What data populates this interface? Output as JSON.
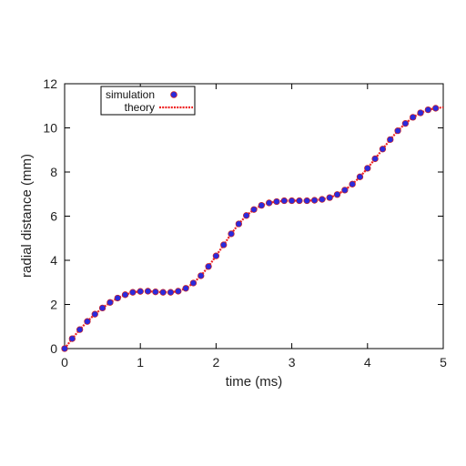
{
  "chart_data": {
    "type": "scatter",
    "xlabel": "time (ms)",
    "ylabel": "radial distance (mm)",
    "xlim": [
      0,
      5
    ],
    "ylim": [
      0,
      12
    ],
    "xticks": [
      "0",
      "1",
      "2",
      "3",
      "4",
      "5"
    ],
    "yticks": [
      "0",
      "2",
      "4",
      "6",
      "8",
      "10",
      "12"
    ],
    "grid": false,
    "legend_position": "top-left",
    "series": [
      {
        "name": "simulation",
        "style": "markers",
        "color": "#2b2bdc",
        "x": [
          0.0,
          0.1,
          0.2,
          0.3,
          0.4,
          0.5,
          0.6,
          0.7,
          0.8,
          0.9,
          1.0,
          1.1,
          1.2,
          1.3,
          1.4,
          1.5,
          1.6,
          1.7,
          1.8,
          1.9,
          2.0,
          2.1,
          2.2,
          2.3,
          2.4,
          2.5,
          2.6,
          2.7,
          2.8,
          2.9,
          3.0,
          3.1,
          3.2,
          3.3,
          3.4,
          3.5,
          3.6,
          3.7,
          3.8,
          3.9,
          4.0,
          4.1,
          4.2,
          4.3,
          4.4,
          4.5,
          4.6,
          4.7,
          4.8,
          4.9
        ],
        "y": [
          0.0,
          0.45,
          0.86,
          1.23,
          1.56,
          1.84,
          2.09,
          2.29,
          2.44,
          2.55,
          2.59,
          2.6,
          2.57,
          2.55,
          2.55,
          2.6,
          2.73,
          2.97,
          3.3,
          3.72,
          4.2,
          4.7,
          5.2,
          5.65,
          6.03,
          6.3,
          6.49,
          6.6,
          6.66,
          6.7,
          6.7,
          6.7,
          6.7,
          6.72,
          6.76,
          6.84,
          6.98,
          7.18,
          7.45,
          7.78,
          8.17,
          8.6,
          9.04,
          9.47,
          9.87,
          10.2,
          10.48,
          10.68,
          10.82,
          10.89
        ]
      },
      {
        "name": "theory",
        "style": "dotted-line",
        "color": "#ee2222",
        "x": [
          0.0,
          0.1,
          0.2,
          0.3,
          0.4,
          0.5,
          0.6,
          0.7,
          0.8,
          0.9,
          1.0,
          1.1,
          1.2,
          1.3,
          1.4,
          1.5,
          1.6,
          1.7,
          1.8,
          1.9,
          2.0,
          2.1,
          2.2,
          2.3,
          2.4,
          2.5,
          2.6,
          2.7,
          2.8,
          2.9,
          3.0,
          3.1,
          3.2,
          3.3,
          3.4,
          3.5,
          3.6,
          3.7,
          3.8,
          3.9,
          4.0,
          4.1,
          4.2,
          4.3,
          4.4,
          4.5,
          4.6,
          4.7,
          4.8,
          4.9,
          5.0
        ],
        "y": [
          0.0,
          0.45,
          0.86,
          1.23,
          1.56,
          1.84,
          2.09,
          2.29,
          2.44,
          2.55,
          2.59,
          2.6,
          2.57,
          2.55,
          2.55,
          2.6,
          2.73,
          2.97,
          3.3,
          3.72,
          4.2,
          4.7,
          5.2,
          5.65,
          6.03,
          6.3,
          6.49,
          6.6,
          6.66,
          6.7,
          6.7,
          6.7,
          6.7,
          6.72,
          6.76,
          6.84,
          6.98,
          7.18,
          7.45,
          7.78,
          8.17,
          8.6,
          9.04,
          9.47,
          9.87,
          10.2,
          10.48,
          10.68,
          10.82,
          10.89,
          10.93
        ]
      }
    ]
  }
}
